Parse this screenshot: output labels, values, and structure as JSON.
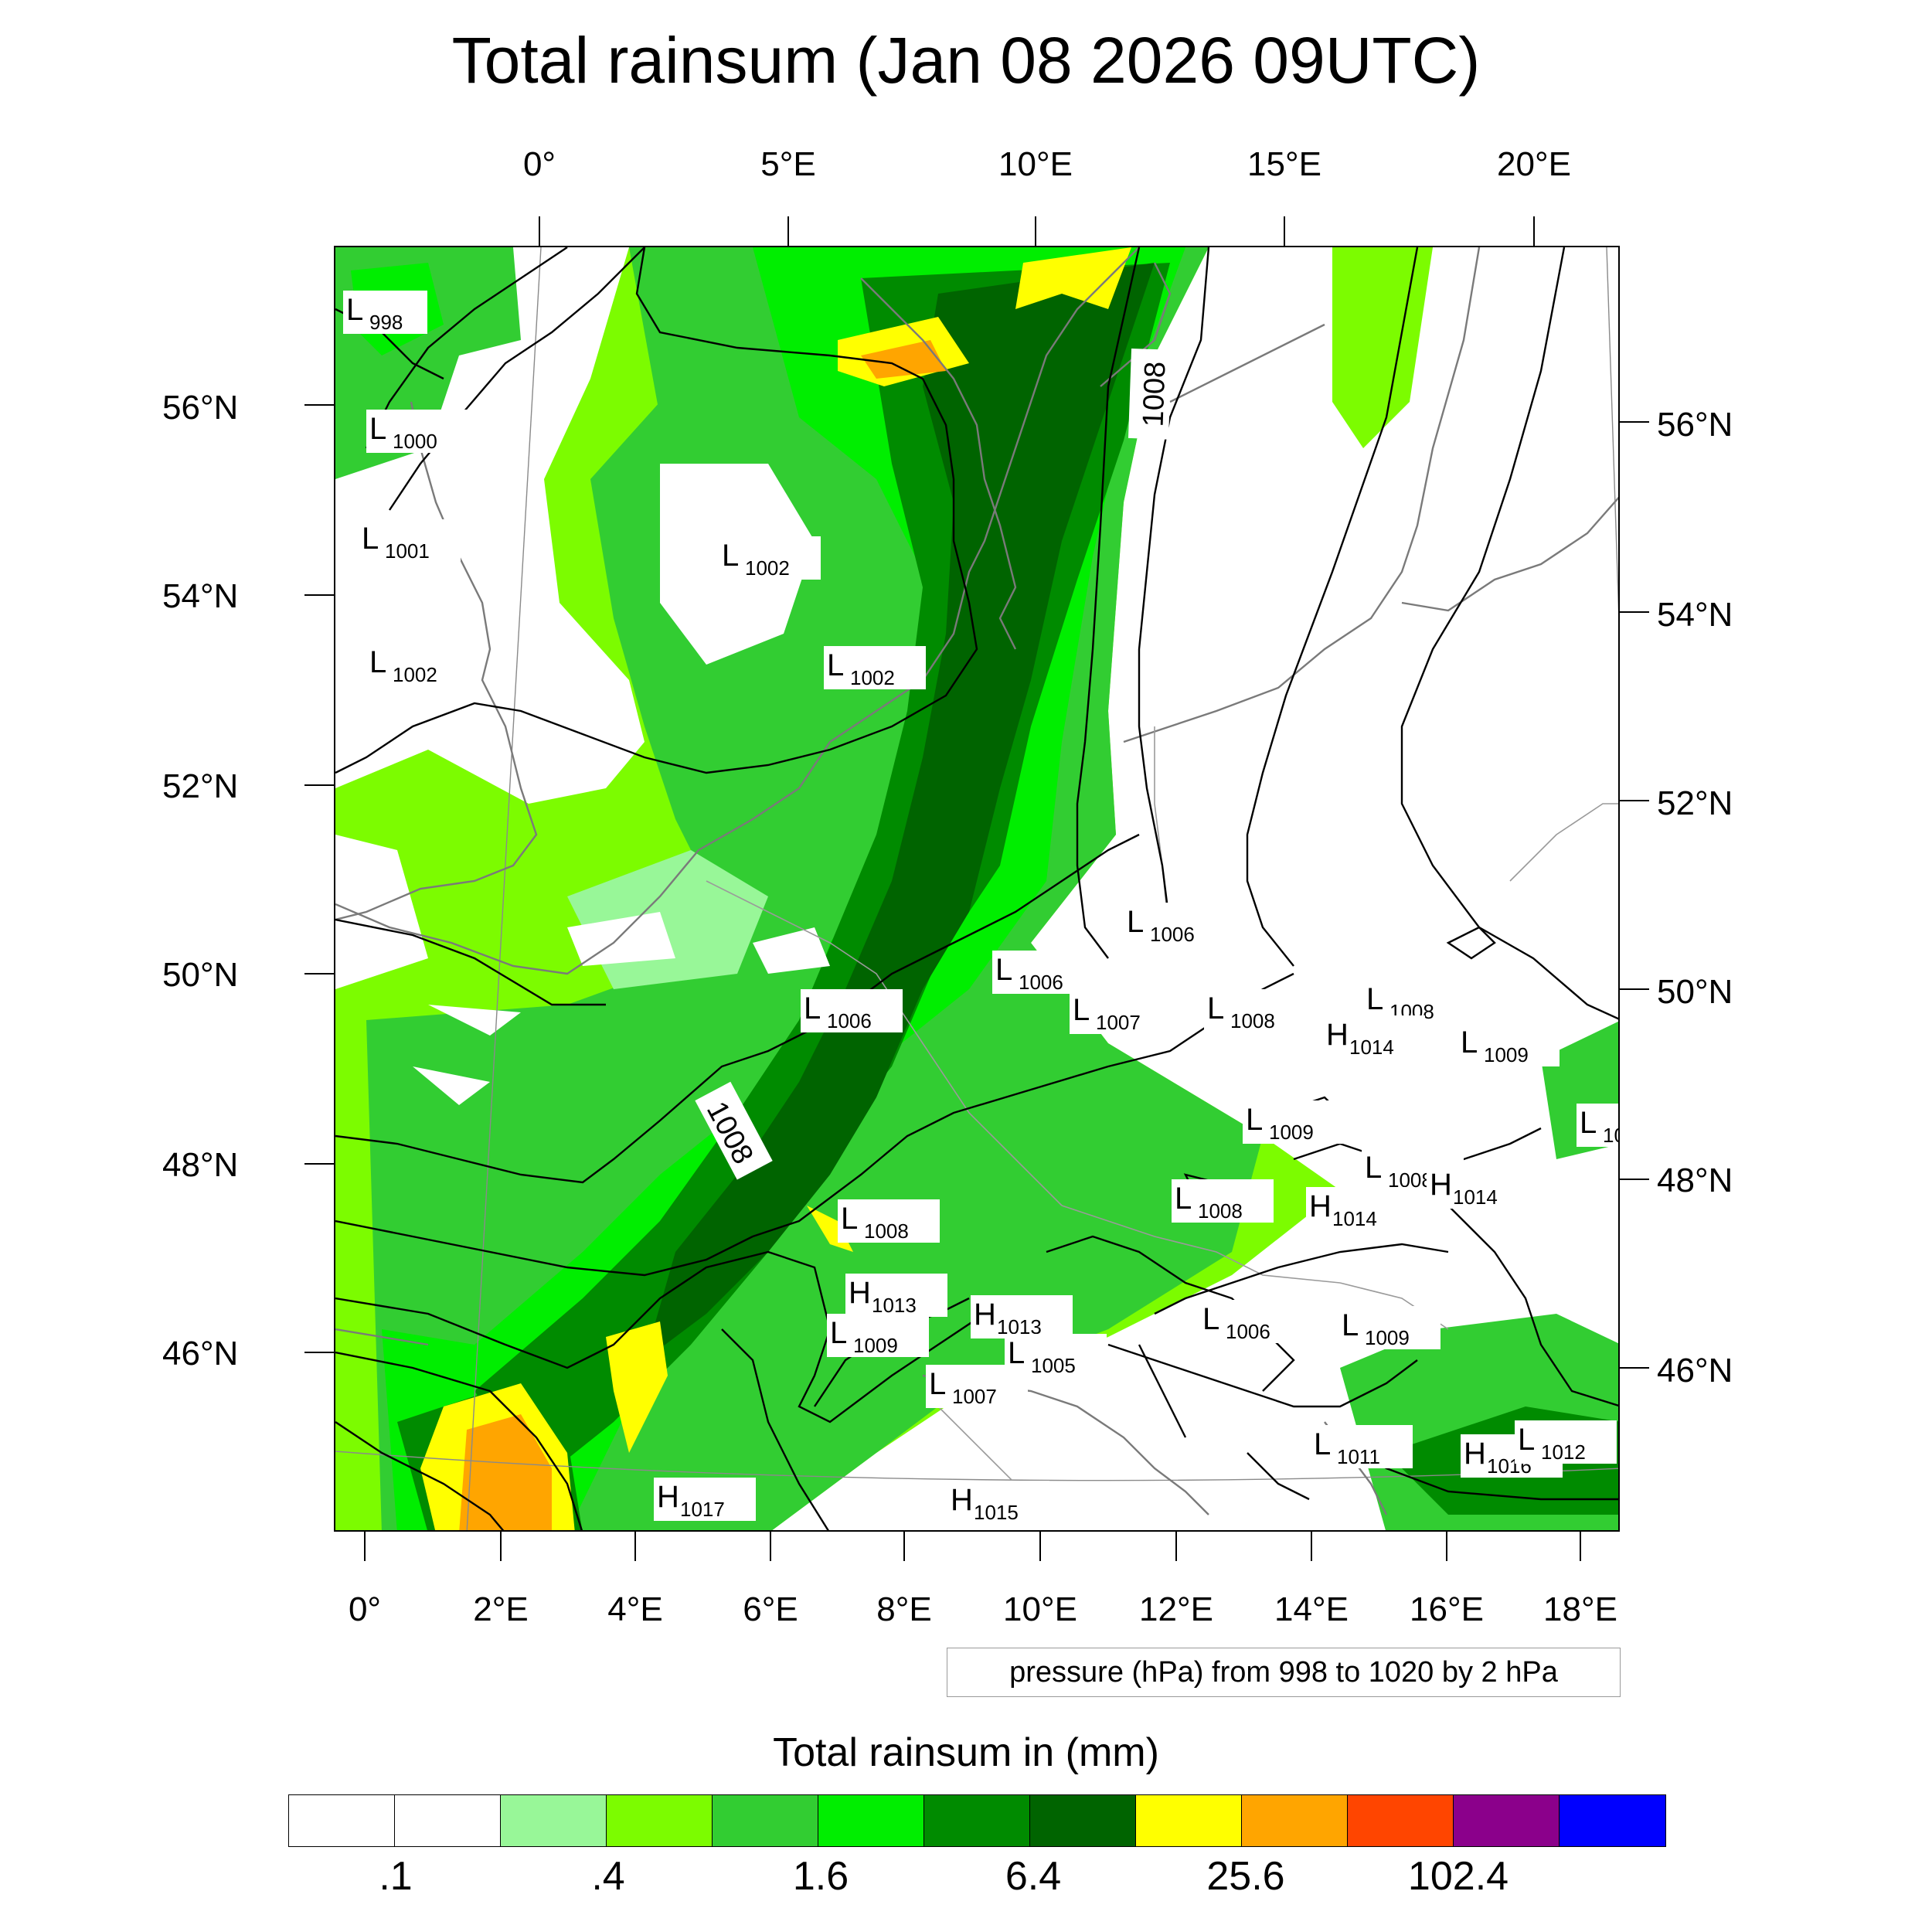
{
  "title": "Total rainsum (Jan 08 2026 09UTC)",
  "top_lon_labels": [
    "0°",
    "5°E",
    "10°E",
    "15°E",
    "20°E"
  ],
  "bottom_lon_labels": [
    "0°",
    "2°E",
    "4°E",
    "6°E",
    "8°E",
    "10°E",
    "12°E",
    "14°E",
    "16°E",
    "18°E"
  ],
  "left_lat_labels": [
    "56°N",
    "54°N",
    "52°N",
    "50°N",
    "48°N",
    "46°N"
  ],
  "right_lat_labels": [
    "56°N",
    "54°N",
    "52°N",
    "50°N",
    "48°N",
    "46°N"
  ],
  "pressure_info": "pressure (hPa) from 998 to 1020 by 2 hPa",
  "colorbar": {
    "title": "Total rainsum in (mm)",
    "colors": [
      "#ffffff",
      "#ffffff",
      "#98f798",
      "#7cfc00",
      "#32cd32",
      "#00ee00",
      "#008b00",
      "#006400",
      "#ffff00",
      "#ffa500",
      "#ff4500",
      "#8b008b",
      "#0000ff"
    ],
    "labels": [
      ".1",
      ".4",
      "1.6",
      "6.4",
      "25.6",
      "102.4"
    ]
  },
  "isobar_labels": [
    {
      "kind": "L",
      "value": "998"
    },
    {
      "kind": "L",
      "value": "1000"
    },
    {
      "kind": "L",
      "value": "1001"
    },
    {
      "kind": "L",
      "value": "1002"
    },
    {
      "kind": "L",
      "value": "1002"
    },
    {
      "kind": "L",
      "value": "1002"
    },
    {
      "kind": "L",
      "value": "1006"
    },
    {
      "kind": "L",
      "value": "1006"
    },
    {
      "kind": "L",
      "value": "1006"
    },
    {
      "kind": "L",
      "value": "1007"
    },
    {
      "kind": "L",
      "value": "1008"
    },
    {
      "kind": "L",
      "value": "1008"
    },
    {
      "kind": "H",
      "value": "1014"
    },
    {
      "kind": "L",
      "value": "1009"
    },
    {
      "kind": "L",
      "value": "1009"
    },
    {
      "kind": "L",
      "value": "10"
    },
    {
      "kind": "L",
      "value": "1008"
    },
    {
      "kind": "H",
      "value": "1014"
    },
    {
      "kind": "H",
      "value": "1014"
    },
    {
      "kind": "L",
      "value": "1008"
    },
    {
      "kind": "L",
      "value": "1008"
    },
    {
      "kind": "H",
      "value": "1013"
    },
    {
      "kind": "H",
      "value": "1013"
    },
    {
      "kind": "L",
      "value": "1009"
    },
    {
      "kind": "L",
      "value": "1006"
    },
    {
      "kind": "L",
      "value": "1009"
    },
    {
      "kind": "L",
      "value": "1005"
    },
    {
      "kind": "L",
      "value": "1007"
    },
    {
      "kind": "L",
      "value": "1011"
    },
    {
      "kind": "H",
      "value": "1016"
    },
    {
      "kind": "L",
      "value": "1012"
    },
    {
      "kind": "H",
      "value": "1017"
    },
    {
      "kind": "H",
      "value": "1015"
    }
  ],
  "contour_labels": [
    "1008",
    "1008"
  ]
}
